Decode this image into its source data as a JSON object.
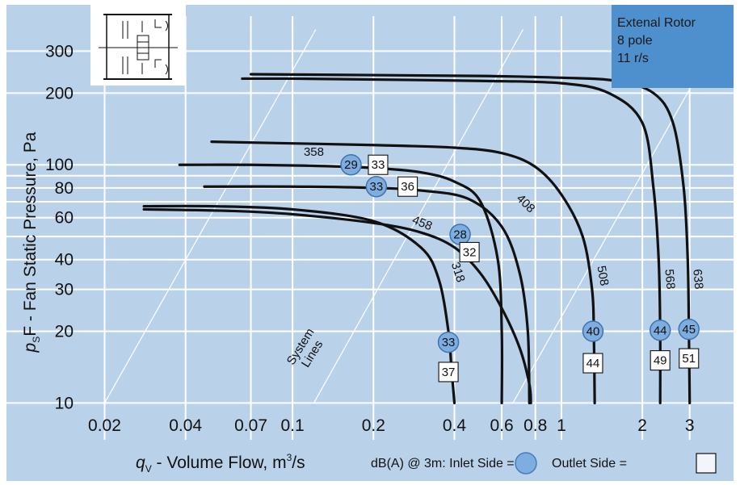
{
  "chart_data": {
    "type": "line",
    "x_scale": "log",
    "y_scale": "log",
    "xlim": [
      0.017,
      3.5
    ],
    "ylim": [
      9.5,
      360
    ],
    "x_ticks": [
      {
        "v": 0.02,
        "label": "0.02"
      },
      {
        "v": 0.04,
        "label": "0.04"
      },
      {
        "v": 0.07,
        "label": "0.07"
      },
      {
        "v": 0.1,
        "label": "0.1"
      },
      {
        "v": 0.2,
        "label": "0.2"
      },
      {
        "v": 0.4,
        "label": "0.4"
      },
      {
        "v": 0.6,
        "label": "0.6"
      },
      {
        "v": 0.8,
        "label": "0.8"
      },
      {
        "v": 1,
        "label": "1"
      },
      {
        "v": 2,
        "label": "2"
      },
      {
        "v": 3,
        "label": "3"
      }
    ],
    "y_ticks": [
      {
        "v": 10,
        "label": "10"
      },
      {
        "v": 20,
        "label": "20"
      },
      {
        "v": 30,
        "label": "30"
      },
      {
        "v": 40,
        "label": "40"
      },
      {
        "v": 60,
        "label": "60"
      },
      {
        "v": 80,
        "label": "80"
      },
      {
        "v": 100,
        "label": "100"
      },
      {
        "v": 200,
        "label": "200"
      },
      {
        "v": 300,
        "label": "300"
      }
    ],
    "vgrid": [
      0.02,
      0.04,
      0.07,
      0.1,
      0.2,
      0.4,
      0.6,
      0.8,
      1,
      2,
      3
    ],
    "hgrid": [
      10,
      20,
      30,
      40,
      50,
      60,
      70,
      80,
      90,
      100,
      200,
      300
    ],
    "ylabel": "pSF - Fan Static Pressure, Pa",
    "ylabel_main": "p",
    "ylabel_sub": "S",
    "ylabel_rest": "F - Fan Static Pressure, Pa",
    "xlabel_main": "q",
    "xlabel_sub": "V",
    "xlabel_rest": " - Volume Flow, m",
    "xlabel_sup": "3",
    "xlabel_end": "/s",
    "series": [
      {
        "name": "318",
        "label_at": [
          0.4,
          35
        ],
        "label_rot": 72,
        "points": [
          [
            0.028,
            67
          ],
          [
            0.05,
            67
          ],
          [
            0.1,
            65
          ],
          [
            0.2,
            58
          ],
          [
            0.3,
            45
          ],
          [
            0.35,
            33
          ],
          [
            0.38,
            20
          ],
          [
            0.39,
            14
          ],
          [
            0.4,
            10
          ]
        ]
      },
      {
        "name": "358",
        "label_at": [
          0.12,
          109
        ],
        "label_rot": 0,
        "points": [
          [
            0.038,
            100
          ],
          [
            0.07,
            100
          ],
          [
            0.12,
            99
          ],
          [
            0.2,
            97
          ],
          [
            0.3,
            93
          ],
          [
            0.4,
            85
          ],
          [
            0.5,
            70
          ],
          [
            0.58,
            40
          ],
          [
            0.6,
            20
          ],
          [
            0.6,
            10
          ]
        ]
      },
      {
        "name": "408",
        "label_at": [
          0.72,
          67
        ],
        "label_rot": 45,
        "points": [
          [
            0.047,
            81
          ],
          [
            0.1,
            81
          ],
          [
            0.2,
            80
          ],
          [
            0.3,
            78
          ],
          [
            0.45,
            72
          ],
          [
            0.6,
            55
          ],
          [
            0.7,
            35
          ],
          [
            0.75,
            20
          ],
          [
            0.76,
            10
          ]
        ]
      },
      {
        "name": "458",
        "label_at": [
          0.3,
          55
        ],
        "label_rot": 22,
        "points": [
          [
            0.028,
            65
          ],
          [
            0.06,
            64
          ],
          [
            0.1,
            62
          ],
          [
            0.2,
            57
          ],
          [
            0.3,
            52
          ],
          [
            0.4,
            45
          ],
          [
            0.5,
            35
          ],
          [
            0.6,
            25
          ],
          [
            0.7,
            17
          ],
          [
            0.76,
            12
          ],
          [
            0.77,
            10
          ]
        ]
      },
      {
        "name": "508",
        "label_at": [
          1.38,
          34
        ],
        "label_rot": 80,
        "points": [
          [
            0.05,
            125
          ],
          [
            0.1,
            123
          ],
          [
            0.2,
            121
          ],
          [
            0.4,
            118
          ],
          [
            0.6,
            112
          ],
          [
            0.8,
            98
          ],
          [
            1.0,
            75
          ],
          [
            1.2,
            50
          ],
          [
            1.3,
            30
          ],
          [
            1.32,
            20
          ],
          [
            1.33,
            10
          ]
        ]
      },
      {
        "name": "568",
        "label_at": [
          2.45,
          33
        ],
        "label_rot": 85,
        "points": [
          [
            0.065,
            230
          ],
          [
            0.1,
            230
          ],
          [
            0.2,
            228
          ],
          [
            0.5,
            225
          ],
          [
            1,
            220
          ],
          [
            1.5,
            200
          ],
          [
            2.0,
            150
          ],
          [
            2.2,
            80
          ],
          [
            2.3,
            40
          ],
          [
            2.33,
            20
          ],
          [
            2.33,
            10
          ]
        ]
      },
      {
        "name": "638",
        "label_at": [
          3.12,
          33
        ],
        "label_rot": 85,
        "points": [
          [
            0.07,
            240
          ],
          [
            0.2,
            238
          ],
          [
            0.5,
            236
          ],
          [
            1,
            232
          ],
          [
            1.6,
            225
          ],
          [
            2.2,
            200
          ],
          [
            2.6,
            150
          ],
          [
            2.85,
            80
          ],
          [
            2.95,
            40
          ],
          [
            2.98,
            20
          ],
          [
            3.0,
            10
          ]
        ]
      }
    ],
    "system_lines": [
      {
        "from": [
          0.02,
          10
        ],
        "to": [
          0.122,
          370
        ]
      },
      {
        "from": [
          0.12,
          10
        ],
        "to": [
          0.72,
          370
        ]
      },
      {
        "from": [
          0.66,
          10
        ],
        "to": [
          4.0,
          370
        ]
      }
    ],
    "system_lines_label_line1": "System",
    "system_lines_label_line2": "Lines",
    "inlet_badges": [
      {
        "x": 0.165,
        "y": 100,
        "label": "29"
      },
      {
        "x": 0.205,
        "y": 81,
        "label": "33"
      },
      {
        "x": 0.42,
        "y": 51,
        "label": "28"
      },
      {
        "x": 0.38,
        "y": 18,
        "label": "33"
      },
      {
        "x": 1.31,
        "y": 20,
        "label": "40"
      },
      {
        "x": 2.33,
        "y": 20.2,
        "label": "44"
      },
      {
        "x": 2.98,
        "y": 20.4,
        "label": "45"
      }
    ],
    "outlet_badges": [
      {
        "x": 0.208,
        "y": 100,
        "label": "33"
      },
      {
        "x": 0.268,
        "y": 81,
        "label": "36"
      },
      {
        "x": 0.455,
        "y": 43,
        "label": "32"
      },
      {
        "x": 0.38,
        "y": 13.5,
        "label": "37"
      },
      {
        "x": 1.31,
        "y": 14.7,
        "label": "44"
      },
      {
        "x": 2.33,
        "y": 15.1,
        "label": "49"
      },
      {
        "x": 2.98,
        "y": 15.4,
        "label": "51"
      }
    ]
  },
  "info_box": {
    "line1": "Extenal Rotor",
    "line2": "8 pole",
    "line3": "11 r/s"
  },
  "legend": {
    "prefix": "dB(A) @ 3m:  Inlet Side =",
    "outlet": "Outlet Side ="
  },
  "colors": {
    "panel": "#bad1ea",
    "grid": "#ffffff",
    "curve": "#111111",
    "inlet_fill": "#7eaee0",
    "info_box": "#4e8fcd",
    "badge_fill": "#ffffff"
  },
  "icons": {
    "fan_schematic": "fan-housing-icon"
  }
}
